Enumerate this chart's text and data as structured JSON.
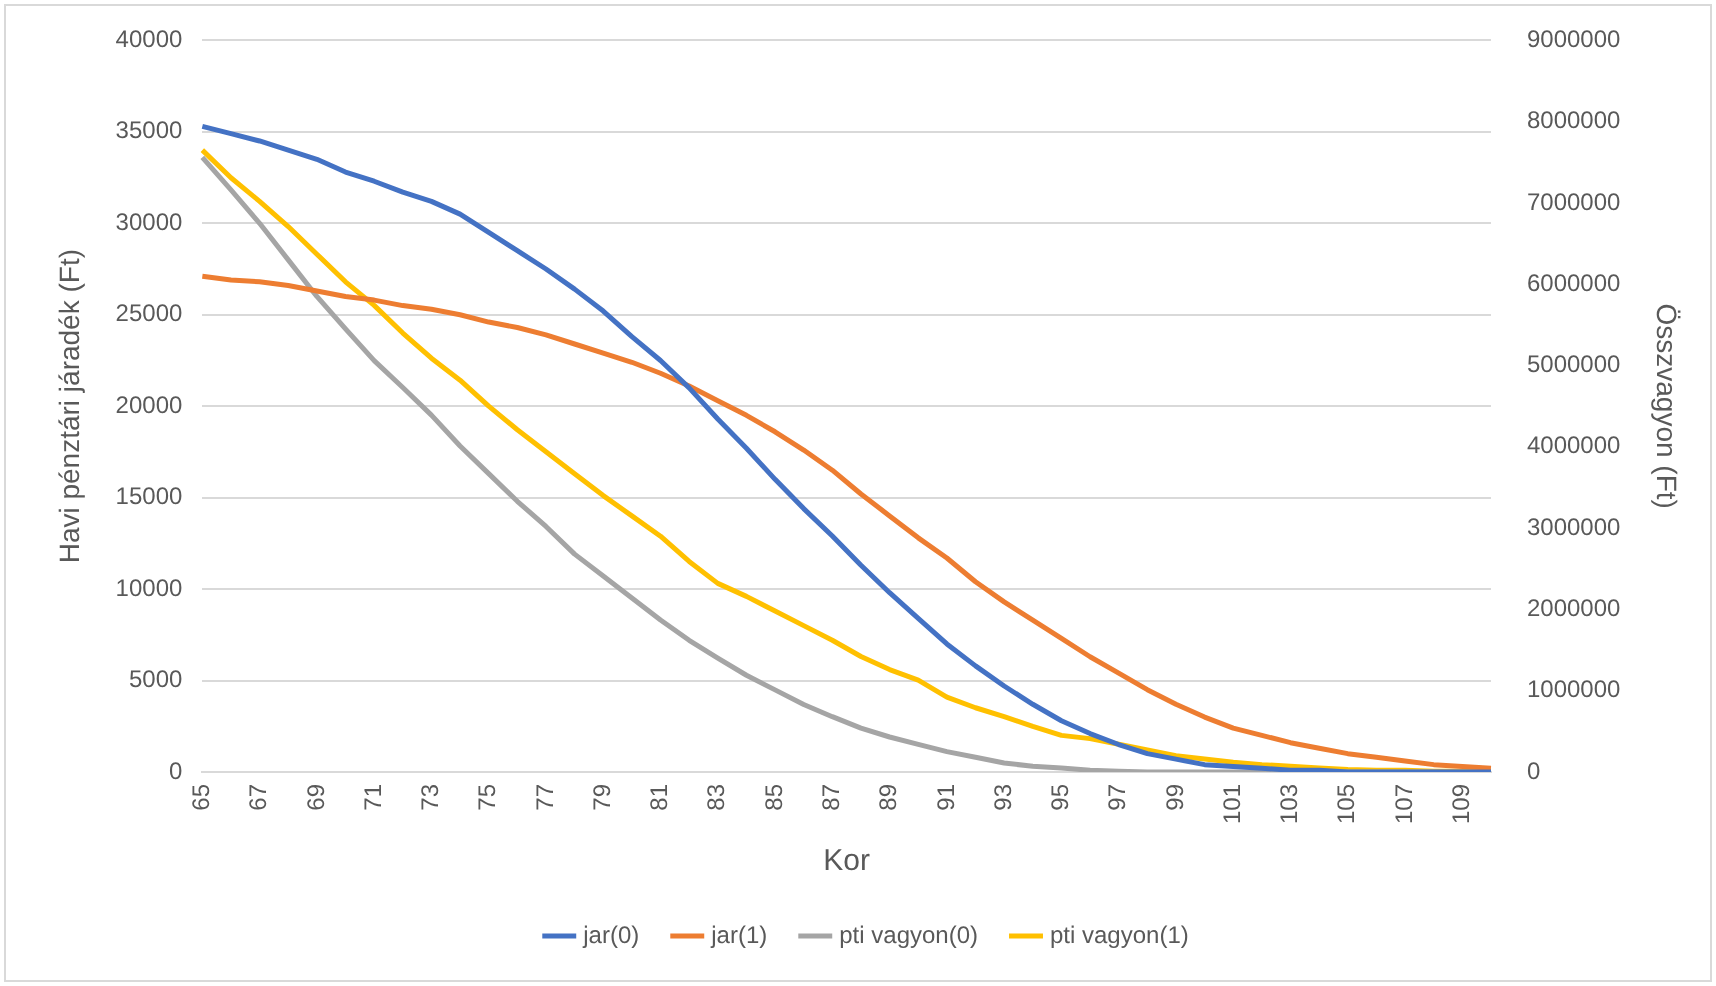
{
  "chart_data": {
    "type": "line",
    "xlabel": "Kor",
    "ylabel": "Havi pénztári járadék (Ft)",
    "y2label": "Összvagyon (Ft)",
    "categories": [
      "65",
      null,
      "67",
      null,
      "69",
      null,
      "71",
      null,
      "73",
      null,
      "75",
      null,
      "77",
      null,
      "79",
      null,
      "81",
      null,
      "83",
      null,
      "85",
      null,
      "87",
      null,
      "89",
      null,
      "91",
      null,
      "93",
      null,
      "95",
      null,
      "97",
      null,
      "99",
      null,
      "101",
      null,
      "103",
      null,
      "105",
      null,
      "107",
      null,
      "109",
      null
    ],
    "series": [
      {
        "name": "jar(0)",
        "color": "#4472c4",
        "values": [
          35300,
          34900,
          34500,
          34000,
          33500,
          32800,
          32300,
          31700,
          31200,
          30500,
          29500,
          28500,
          27500,
          26400,
          25200,
          23800,
          22500,
          21000,
          19300,
          17700,
          16000,
          14400,
          12900,
          11300,
          9800,
          8400,
          7000,
          5800,
          4700,
          3700,
          2800,
          2100,
          1500,
          1000,
          700,
          400,
          300,
          200,
          100,
          100,
          0,
          0,
          0,
          0,
          0,
          0
        ]
      },
      {
        "name": "jar(1)",
        "color": "#ed7d31",
        "values": [
          27100,
          26900,
          26800,
          26600,
          26300,
          26000,
          25800,
          25500,
          25300,
          25000,
          24600,
          24300,
          23900,
          23400,
          22900,
          22400,
          21800,
          21100,
          20300,
          19500,
          18600,
          17600,
          16500,
          15200,
          14000,
          12800,
          11700,
          10400,
          9300,
          8300,
          7300,
          6300,
          5400,
          4500,
          3700,
          3000,
          2400,
          2000,
          1600,
          1300,
          1000,
          800,
          600,
          400,
          300,
          200
        ]
      },
      {
        "name": "pti vagyon(0)",
        "color": "#a5a5a5",
        "axis": "y2",
        "values": [
          7560000,
          7160000,
          6750000,
          6300000,
          5850000,
          5450000,
          5060000,
          4730000,
          4390000,
          4010000,
          3670000,
          3330000,
          3020000,
          2680000,
          2410000,
          2140000,
          1870000,
          1620000,
          1400000,
          1190000,
          1010000,
          830000,
          680000,
          540000,
          430000,
          340000,
          250000,
          180000,
          110000,
          70000,
          50000,
          20000,
          10000,
          0,
          0,
          0,
          0,
          0,
          0,
          0,
          0,
          0,
          0,
          0,
          0,
          0
        ]
      },
      {
        "name": "pti vagyon(1)",
        "color": "#ffc000",
        "axis": "y2",
        "values": [
          7650000,
          7310000,
          7020000,
          6710000,
          6370000,
          6030000,
          5740000,
          5400000,
          5090000,
          4820000,
          4500000,
          4210000,
          3940000,
          3670000,
          3400000,
          3150000,
          2900000,
          2590000,
          2320000,
          2160000,
          1980000,
          1800000,
          1620000,
          1420000,
          1260000,
          1130000,
          920000,
          790000,
          680000,
          560000,
          450000,
          410000,
          340000,
          270000,
          200000,
          160000,
          120000,
          90000,
          70000,
          50000,
          30000,
          20000,
          20000,
          10000,
          10000,
          0
        ]
      }
    ],
    "ylim": [
      0,
      40000
    ],
    "yticks": [
      0,
      5000,
      10000,
      15000,
      20000,
      25000,
      30000,
      35000,
      40000
    ],
    "y2lim": [
      0,
      9000000
    ],
    "y2ticks": [
      0,
      1000000,
      2000000,
      3000000,
      4000000,
      5000000,
      6000000,
      7000000,
      8000000,
      9000000
    ],
    "grid": "y",
    "legend": "bottom",
    "marker": "none",
    "line_style": "solid"
  }
}
